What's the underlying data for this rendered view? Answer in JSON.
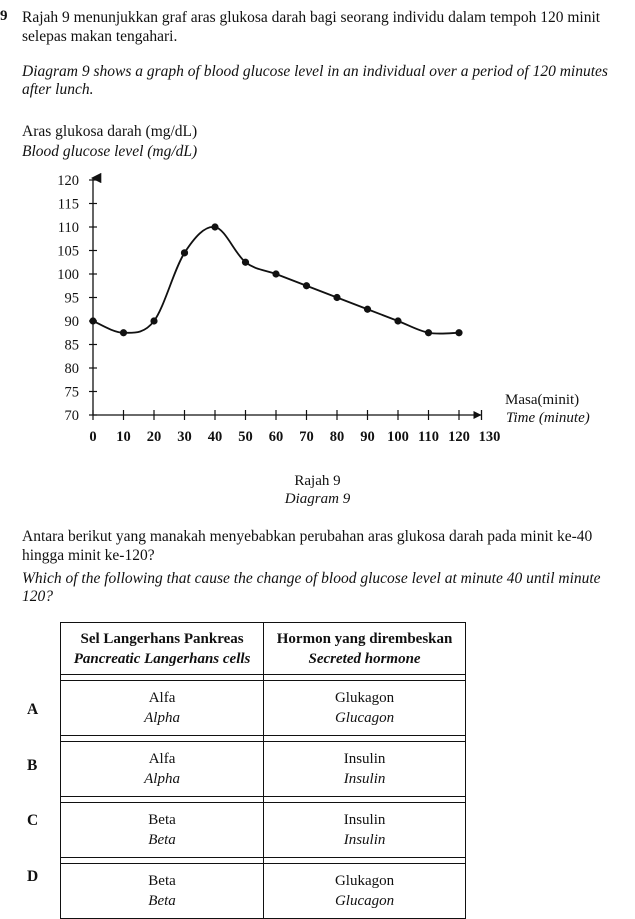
{
  "question": {
    "number": "9",
    "text_ms": "Rajah 9 menunjukkan graf aras glukosa darah bagi seorang individu dalam tempoh 120 minit selepas makan tengahari.",
    "text_en": "Diagram 9 shows a graph of blood glucose level in an individual over a period of 120 minutes after lunch."
  },
  "chart_data": {
    "type": "line",
    "ylabel_ms": "Aras glukosa darah (mg/dL)",
    "ylabel_en": "Blood glucose level (mg/dL)",
    "xlabel_ms": "Masa(minit)",
    "xlabel_en": "Time (minute)",
    "xlim": [
      0,
      130
    ],
    "ylim": [
      70,
      120
    ],
    "x_ticks": [
      0,
      10,
      20,
      30,
      40,
      50,
      60,
      70,
      80,
      90,
      100,
      110,
      120,
      130
    ],
    "y_ticks": [
      70,
      75,
      80,
      85,
      90,
      95,
      100,
      105,
      110,
      115,
      120
    ],
    "x": [
      0,
      10,
      20,
      30,
      40,
      50,
      60,
      70,
      80,
      90,
      100,
      110,
      120
    ],
    "values": [
      90,
      87.5,
      90,
      104.5,
      110,
      102.5,
      100,
      97.5,
      95,
      92.5,
      90,
      87.5,
      87.5
    ]
  },
  "diagram_caption": {
    "ms": "Rajah 9",
    "en": "Diagram 9"
  },
  "question2": {
    "text_ms": "Antara berikut yang manakah menyebabkan perubahan aras glukosa darah pada minit ke-40 hingga minit ke-120?",
    "text_en": "Which of the following that cause the change of blood glucose level at minute 40 until minute 120?"
  },
  "table": {
    "header": {
      "col1_ms": "Sel Langerhans Pankreas",
      "col1_en": "Pancreatic Langerhans cells",
      "col2_ms": "Hormon yang dirembeskan",
      "col2_en": "Secreted hormone"
    },
    "options": [
      {
        "letter": "A",
        "cell_ms": "Alfa",
        "cell_en": "Alpha",
        "hormone_ms": "Glukagon",
        "hormone_en": "Glucagon"
      },
      {
        "letter": "B",
        "cell_ms": "Alfa",
        "cell_en": "Alpha",
        "hormone_ms": "Insulin",
        "hormone_en": "Insulin"
      },
      {
        "letter": "C",
        "cell_ms": "Beta",
        "cell_en": "Beta",
        "hormone_ms": "Insulin",
        "hormone_en": "Insulin"
      },
      {
        "letter": "D",
        "cell_ms": "Beta",
        "cell_en": "Beta",
        "hormone_ms": "Glukagon",
        "hormone_en": "Glucagon"
      }
    ]
  }
}
